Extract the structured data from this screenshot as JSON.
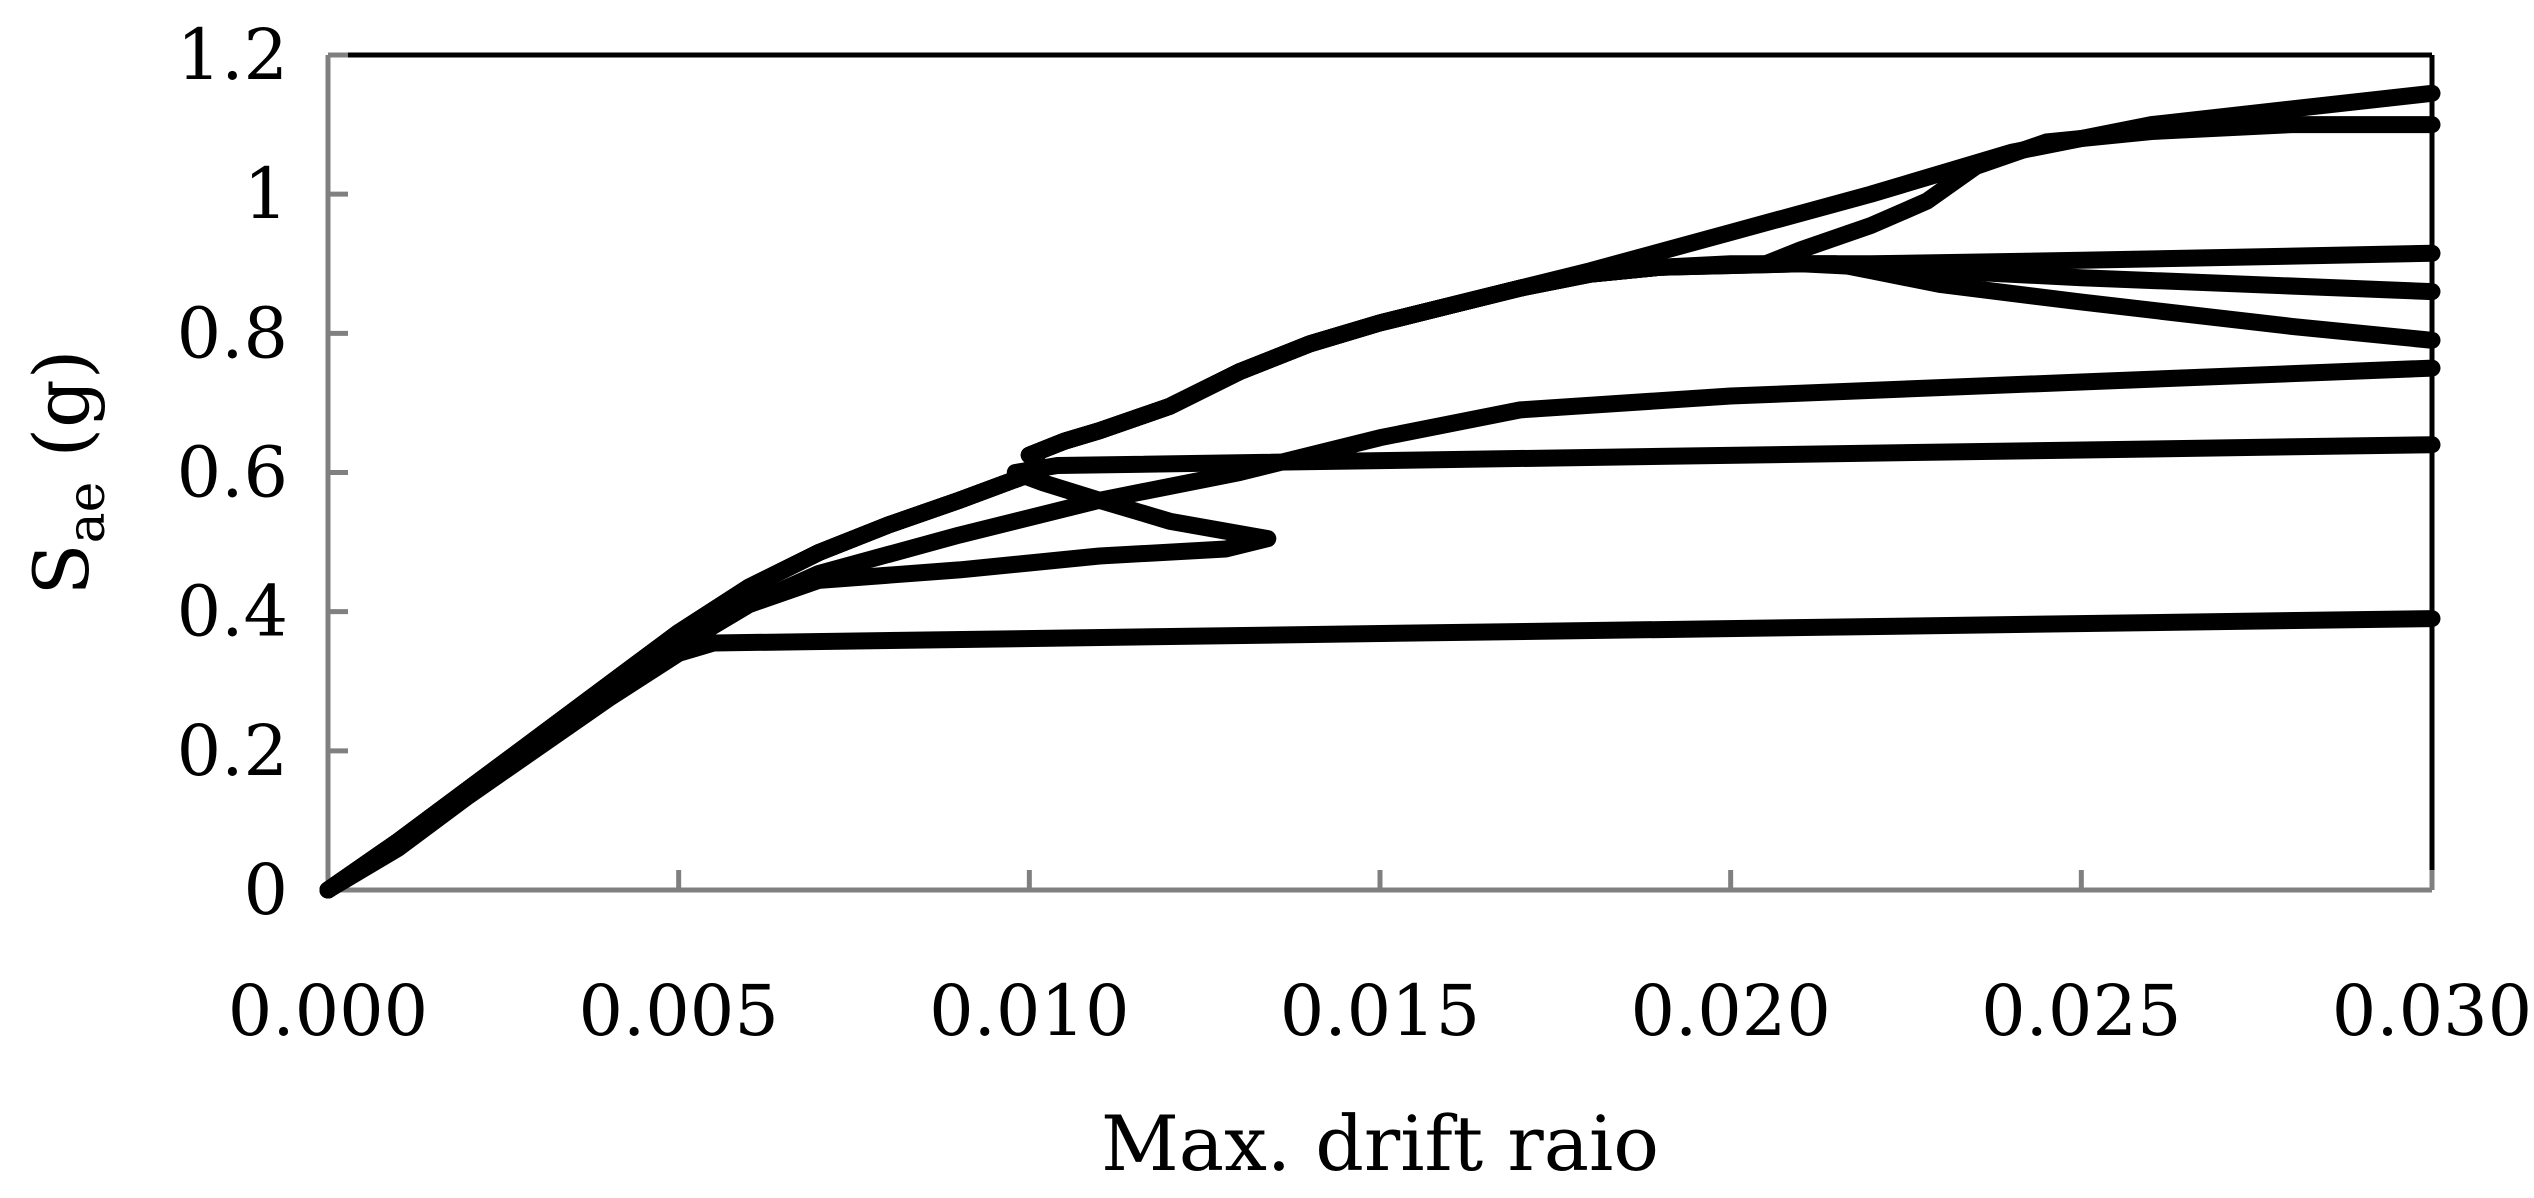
{
  "chart_data": {
    "type": "line",
    "title": "",
    "xlabel": "Max. drift raio",
    "ylabel_main": "S",
    "ylabel_sub": "ae",
    "ylabel_tail": " (g)",
    "xlim": [
      0,
      0.03
    ],
    "ylim": [
      0,
      1.2
    ],
    "x_ticks": [
      0,
      0.005,
      0.01,
      0.015,
      0.02,
      0.025,
      0.03
    ],
    "x_tick_labels": [
      "0.000",
      "0.005",
      "0.010",
      "0.015",
      "0.020",
      "0.025",
      "0.030"
    ],
    "y_ticks": [
      0,
      0.2,
      0.4,
      0.6,
      0.8,
      1.0,
      1.2
    ],
    "y_tick_labels": [
      "0",
      "0.2",
      "0.4",
      "0.6",
      "0.8",
      "1",
      "1.2"
    ],
    "grid": false,
    "legend": "none",
    "colors": {
      "series": "#000000",
      "axis": "#808080",
      "frame": "#000000"
    },
    "series": [
      {
        "points": [
          [
            0,
            0
          ],
          [
            0.001,
            0.06
          ],
          [
            0.002,
            0.135
          ],
          [
            0.003,
            0.205
          ],
          [
            0.004,
            0.275
          ],
          [
            0.005,
            0.34
          ],
          [
            0.0055,
            0.355
          ],
          [
            0.03,
            0.39
          ]
        ]
      },
      {
        "points": [
          [
            0,
            0
          ],
          [
            0.001,
            0.065
          ],
          [
            0.002,
            0.14
          ],
          [
            0.003,
            0.215
          ],
          [
            0.004,
            0.285
          ],
          [
            0.005,
            0.35
          ],
          [
            0.006,
            0.41
          ],
          [
            0.007,
            0.445
          ],
          [
            0.009,
            0.46
          ],
          [
            0.011,
            0.48
          ],
          [
            0.0128,
            0.49
          ],
          [
            0.0134,
            0.505
          ],
          [
            0.012,
            0.53
          ],
          [
            0.011,
            0.56
          ],
          [
            0.0102,
            0.585
          ],
          [
            0.0098,
            0.6
          ],
          [
            0.0104,
            0.61
          ],
          [
            0.03,
            0.64
          ]
        ]
      },
      {
        "points": [
          [
            0,
            0
          ],
          [
            0.001,
            0.065
          ],
          [
            0.002,
            0.14
          ],
          [
            0.003,
            0.215
          ],
          [
            0.004,
            0.285
          ],
          [
            0.005,
            0.35
          ],
          [
            0.006,
            0.41
          ],
          [
            0.007,
            0.455
          ],
          [
            0.009,
            0.51
          ],
          [
            0.011,
            0.56
          ],
          [
            0.013,
            0.6
          ],
          [
            0.015,
            0.65
          ],
          [
            0.017,
            0.69
          ],
          [
            0.02,
            0.71
          ],
          [
            0.025,
            0.73
          ],
          [
            0.03,
            0.75
          ]
        ]
      },
      {
        "points": [
          [
            0,
            0
          ],
          [
            0.001,
            0.07
          ],
          [
            0.002,
            0.145
          ],
          [
            0.003,
            0.22
          ],
          [
            0.004,
            0.295
          ],
          [
            0.005,
            0.37
          ],
          [
            0.006,
            0.435
          ],
          [
            0.007,
            0.485
          ],
          [
            0.008,
            0.525
          ],
          [
            0.009,
            0.56
          ],
          [
            0.0098,
            0.59
          ],
          [
            0.0102,
            0.605
          ],
          [
            0.01,
            0.625
          ],
          [
            0.0105,
            0.645
          ],
          [
            0.011,
            0.66
          ],
          [
            0.012,
            0.695
          ],
          [
            0.013,
            0.745
          ],
          [
            0.014,
            0.785
          ],
          [
            0.015,
            0.815
          ],
          [
            0.016,
            0.84
          ],
          [
            0.017,
            0.865
          ],
          [
            0.018,
            0.885
          ],
          [
            0.019,
            0.895
          ],
          [
            0.02,
            0.9
          ],
          [
            0.022,
            0.9
          ],
          [
            0.025,
            0.905
          ],
          [
            0.03,
            0.915
          ]
        ]
      },
      {
        "points": [
          [
            0,
            0
          ],
          [
            0.001,
            0.07
          ],
          [
            0.002,
            0.145
          ],
          [
            0.003,
            0.22
          ],
          [
            0.004,
            0.295
          ],
          [
            0.005,
            0.37
          ],
          [
            0.006,
            0.435
          ],
          [
            0.007,
            0.485
          ],
          [
            0.008,
            0.525
          ],
          [
            0.009,
            0.56
          ],
          [
            0.0098,
            0.59
          ],
          [
            0.0102,
            0.605
          ],
          [
            0.01,
            0.625
          ],
          [
            0.0105,
            0.645
          ],
          [
            0.011,
            0.66
          ],
          [
            0.012,
            0.695
          ],
          [
            0.013,
            0.745
          ],
          [
            0.014,
            0.785
          ],
          [
            0.015,
            0.815
          ],
          [
            0.016,
            0.84
          ],
          [
            0.017,
            0.865
          ],
          [
            0.018,
            0.885
          ],
          [
            0.019,
            0.895
          ],
          [
            0.021,
            0.9
          ],
          [
            0.025,
            0.88
          ],
          [
            0.03,
            0.86
          ]
        ]
      },
      {
        "points": [
          [
            0,
            0
          ],
          [
            0.001,
            0.07
          ],
          [
            0.002,
            0.145
          ],
          [
            0.003,
            0.22
          ],
          [
            0.004,
            0.295
          ],
          [
            0.005,
            0.37
          ],
          [
            0.006,
            0.435
          ],
          [
            0.007,
            0.485
          ],
          [
            0.008,
            0.525
          ],
          [
            0.009,
            0.56
          ],
          [
            0.0098,
            0.59
          ],
          [
            0.0102,
            0.605
          ],
          [
            0.01,
            0.625
          ],
          [
            0.0105,
            0.645
          ],
          [
            0.011,
            0.66
          ],
          [
            0.012,
            0.695
          ],
          [
            0.013,
            0.745
          ],
          [
            0.014,
            0.785
          ],
          [
            0.015,
            0.815
          ],
          [
            0.016,
            0.84
          ],
          [
            0.017,
            0.865
          ],
          [
            0.018,
            0.885
          ],
          [
            0.019,
            0.895
          ],
          [
            0.021,
            0.9
          ],
          [
            0.0215,
            0.9
          ],
          [
            0.022,
            0.89
          ],
          [
            0.023,
            0.87
          ],
          [
            0.025,
            0.845
          ],
          [
            0.028,
            0.81
          ],
          [
            0.03,
            0.79
          ]
        ]
      },
      {
        "points": [
          [
            0,
            0
          ],
          [
            0.001,
            0.07
          ],
          [
            0.002,
            0.145
          ],
          [
            0.003,
            0.22
          ],
          [
            0.004,
            0.295
          ],
          [
            0.005,
            0.37
          ],
          [
            0.006,
            0.435
          ],
          [
            0.007,
            0.485
          ],
          [
            0.008,
            0.525
          ],
          [
            0.009,
            0.56
          ],
          [
            0.0098,
            0.59
          ],
          [
            0.0102,
            0.605
          ],
          [
            0.01,
            0.625
          ],
          [
            0.0105,
            0.645
          ],
          [
            0.011,
            0.66
          ],
          [
            0.012,
            0.695
          ],
          [
            0.013,
            0.745
          ],
          [
            0.014,
            0.785
          ],
          [
            0.015,
            0.815
          ],
          [
            0.016,
            0.84
          ],
          [
            0.017,
            0.865
          ],
          [
            0.018,
            0.89
          ],
          [
            0.02,
            0.945
          ],
          [
            0.022,
            1.0
          ],
          [
            0.024,
            1.06
          ],
          [
            0.026,
            1.1
          ],
          [
            0.03,
            1.145
          ]
        ]
      },
      {
        "points": [
          [
            0,
            0
          ],
          [
            0.001,
            0.07
          ],
          [
            0.002,
            0.145
          ],
          [
            0.003,
            0.22
          ],
          [
            0.004,
            0.295
          ],
          [
            0.005,
            0.37
          ],
          [
            0.006,
            0.435
          ],
          [
            0.007,
            0.485
          ],
          [
            0.008,
            0.525
          ],
          [
            0.009,
            0.56
          ],
          [
            0.0098,
            0.59
          ],
          [
            0.0102,
            0.605
          ],
          [
            0.01,
            0.625
          ],
          [
            0.0105,
            0.645
          ],
          [
            0.011,
            0.66
          ],
          [
            0.012,
            0.695
          ],
          [
            0.013,
            0.745
          ],
          [
            0.014,
            0.785
          ],
          [
            0.015,
            0.815
          ],
          [
            0.016,
            0.84
          ],
          [
            0.017,
            0.865
          ],
          [
            0.018,
            0.885
          ],
          [
            0.019,
            0.895
          ],
          [
            0.0205,
            0.9
          ],
          [
            0.021,
            0.92
          ],
          [
            0.022,
            0.955
          ],
          [
            0.0228,
            0.99
          ],
          [
            0.0235,
            1.04
          ],
          [
            0.0245,
            1.075
          ],
          [
            0.026,
            1.09
          ],
          [
            0.028,
            1.1
          ],
          [
            0.03,
            1.1
          ]
        ]
      }
    ]
  }
}
